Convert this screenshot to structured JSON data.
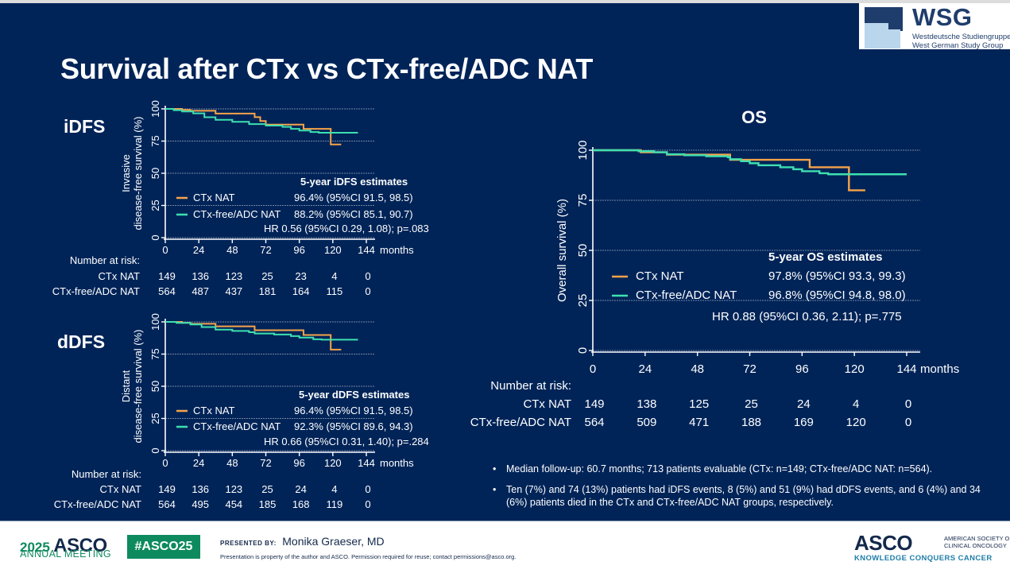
{
  "header": {
    "title": "Survival after CTx vs CTx-free/ADC NAT",
    "logo": {
      "name": "WSG",
      "line1": "Westdeutsche Studiengruppe",
      "line2": "West German Study Group"
    }
  },
  "colors": {
    "background": "#002458",
    "ctx_nat": "#f5a34a",
    "ctx_free_adc_nat": "#3ee0b0",
    "gridline": "#9aa6bb",
    "text": "#ffffff",
    "asco_green": "#0e8a5f",
    "asco_navy": "#13294b"
  },
  "chart_data": [
    {
      "id": "idfs",
      "type": "line",
      "section_label": "iDFS",
      "title": "",
      "xlabel": "months",
      "ylabel_lines": [
        "Invasive",
        "disease-free survival (%)"
      ],
      "xlim": [
        0,
        144
      ],
      "ylim": [
        0,
        100
      ],
      "xticks": [
        "0",
        "24",
        "48",
        "72",
        "96",
        "120",
        "144"
      ],
      "yticks": [
        "0",
        "25",
        "50",
        "75",
        "100"
      ],
      "grid": true,
      "legend_title": "5-year iDFS estimates",
      "series": [
        {
          "name": "CTx NAT",
          "estimate": "96.4% (95%CI 91.5, 98.5)",
          "color_key": "ctx_nat",
          "steps": [
            [
              0,
              100
            ],
            [
              12,
              99.2
            ],
            [
              18,
              98.5
            ],
            [
              36,
              96.4
            ],
            [
              64,
              93.6
            ],
            [
              68,
              90.6
            ],
            [
              72,
              87.8
            ],
            [
              98,
              87.8
            ],
            [
              99,
              84.5
            ],
            [
              118,
              84.5
            ],
            [
              118.5,
              72.4
            ],
            [
              126,
              72.4
            ]
          ],
          "at_risk": [
            "149",
            "136",
            "123",
            "25",
            "23",
            "4",
            "0"
          ]
        },
        {
          "name": "CTx-free/ADC NAT",
          "estimate": "88.2% (95%CI 85.1, 90.7)",
          "color_key": "ctx_free_adc_nat",
          "steps": [
            [
              0,
              100
            ],
            [
              6,
              99
            ],
            [
              12,
              98
            ],
            [
              20,
              96.5
            ],
            [
              28,
              93.5
            ],
            [
              36,
              91.5
            ],
            [
              48,
              90
            ],
            [
              60,
              88.2
            ],
            [
              72,
              87
            ],
            [
              84,
              86
            ],
            [
              90,
              84.5
            ],
            [
              96,
              83.2
            ],
            [
              104,
              82
            ],
            [
              110,
              81.5
            ],
            [
              138,
              81.5
            ]
          ],
          "at_risk": [
            "564",
            "487",
            "437",
            "181",
            "164",
            "115",
            "0"
          ]
        }
      ],
      "hr_text": "HR 0.56 (95%CI 0.29, 1.08); p=.083",
      "at_risk_label": "Number at risk:"
    },
    {
      "id": "ddfs",
      "type": "line",
      "section_label": "dDFS",
      "title": "",
      "xlabel": "months",
      "ylabel_lines": [
        "Distant",
        "disease-free survival (%)"
      ],
      "xlim": [
        0,
        144
      ],
      "ylim": [
        0,
        100
      ],
      "xticks": [
        "0",
        "24",
        "48",
        "72",
        "96",
        "120",
        "144"
      ],
      "yticks": [
        "0",
        "25",
        "50",
        "75",
        "100"
      ],
      "grid": true,
      "legend_title": "5-year dDFS estimates",
      "series": [
        {
          "name": "CTx NAT",
          "estimate": "96.4% (95%CI 91.5, 98.5)",
          "color_key": "ctx_nat",
          "steps": [
            [
              0,
              100
            ],
            [
              12,
              99.3
            ],
            [
              18,
              98.5
            ],
            [
              36,
              96.5
            ],
            [
              64,
              93.5
            ],
            [
              98,
              93.5
            ],
            [
              99,
              89.8
            ],
            [
              118,
              89.8
            ],
            [
              118.5,
              78.5
            ],
            [
              126,
              78.5
            ]
          ],
          "at_risk": [
            "149",
            "136",
            "123",
            "25",
            "24",
            "4",
            "0"
          ]
        },
        {
          "name": "CTx-free/ADC NAT",
          "estimate": "92.3% (95%CI 89.6, 94.3)",
          "color_key": "ctx_free_adc_nat",
          "steps": [
            [
              0,
              100
            ],
            [
              8,
              99.2
            ],
            [
              18,
              98
            ],
            [
              26,
              96
            ],
            [
              36,
              94
            ],
            [
              48,
              93
            ],
            [
              60,
              92
            ],
            [
              64,
              91
            ],
            [
              78,
              90.2
            ],
            [
              90,
              89
            ],
            [
              96,
              87.8
            ],
            [
              106,
              86.5
            ],
            [
              112,
              86.2
            ],
            [
              138,
              86.2
            ]
          ],
          "at_risk": [
            "564",
            "495",
            "454",
            "185",
            "168",
            "119",
            "0"
          ]
        }
      ],
      "hr_text": "HR 0.66 (95%CI 0.31, 1.40); p=.284",
      "at_risk_label": "Number at risk:"
    },
    {
      "id": "os",
      "type": "line",
      "section_label": "OS",
      "title": "OS",
      "xlabel": "months",
      "ylabel_lines": [
        "Overall survival (%)"
      ],
      "xlim": [
        0,
        144
      ],
      "ylim": [
        0,
        100
      ],
      "xticks": [
        "0",
        "24",
        "48",
        "72",
        "96",
        "120",
        "144"
      ],
      "yticks": [
        "0",
        "25",
        "50",
        "75",
        "100"
      ],
      "grid": true,
      "legend_title": "5-year OS estimates",
      "series": [
        {
          "name": "CTx NAT",
          "estimate": "97.8% (95%CI 93.3, 99.3)",
          "color_key": "ctx_nat",
          "steps": [
            [
              0,
              100
            ],
            [
              22,
              99
            ],
            [
              34,
              97.8
            ],
            [
              62,
              97.8
            ],
            [
              63,
              95.2
            ],
            [
              99,
              95.2
            ],
            [
              99.5,
              91.5
            ],
            [
              117,
              91.5
            ],
            [
              117.5,
              80
            ],
            [
              125,
              80
            ]
          ],
          "at_risk": [
            "149",
            "138",
            "125",
            "25",
            "24",
            "4",
            "0"
          ]
        },
        {
          "name": "CTx-free/ADC NAT",
          "estimate": "96.8% (95%CI 94.8, 98.0)",
          "color_key": "ctx_free_adc_nat",
          "steps": [
            [
              0,
              100
            ],
            [
              21,
              99.5
            ],
            [
              28,
              99
            ],
            [
              34,
              98
            ],
            [
              42,
              97.5
            ],
            [
              52,
              97
            ],
            [
              62,
              96.5
            ],
            [
              63,
              95.5
            ],
            [
              68,
              94.5
            ],
            [
              72,
              93.5
            ],
            [
              76,
              92.5
            ],
            [
              86,
              91.5
            ],
            [
              92,
              90.5
            ],
            [
              96,
              89.5
            ],
            [
              104,
              88.5
            ],
            [
              108,
              88
            ],
            [
              144,
              88
            ]
          ],
          "at_risk": [
            "564",
            "509",
            "471",
            "188",
            "169",
            "120",
            "0"
          ]
        }
      ],
      "hr_text": "HR 0.88 (95%CI 0.36, 2.11); p=.775",
      "at_risk_label": "Number at risk:"
    }
  ],
  "bullets": [
    "Median follow-up: 60.7 months; 713 patients evaluable (CTx: n=149; CTx-free/ADC NAT: n=564).",
    "Ten (7%) and 74 (13%) patients had iDFS events, 8 (5%) and 51 (9%) had dDFS events, and 6 (4%) and 34 (6%) patients died in the CTx and CTx-free/ADC NAT groups, respectively."
  ],
  "bullet_icon": "bullet-dot",
  "footer": {
    "meeting_year": "2025",
    "meeting_org": "ASCO",
    "meeting_name": "ANNUAL MEETING",
    "hashtag": "#ASCO25",
    "presented_by_label": "PRESENTED BY:",
    "presenter": "Monika Graeser, MD",
    "disclaimer": "Presentation is property of the author and ASCO. Permission required for reuse; contact permissions@asco.org.",
    "asco_logo": "ASCO",
    "asco_society_line1": "AMERICAN SOCIETY OF",
    "asco_society_line2": "CLINICAL ONCOLOGY",
    "asco_tagline": "KNOWLEDGE CONQUERS CANCER"
  }
}
